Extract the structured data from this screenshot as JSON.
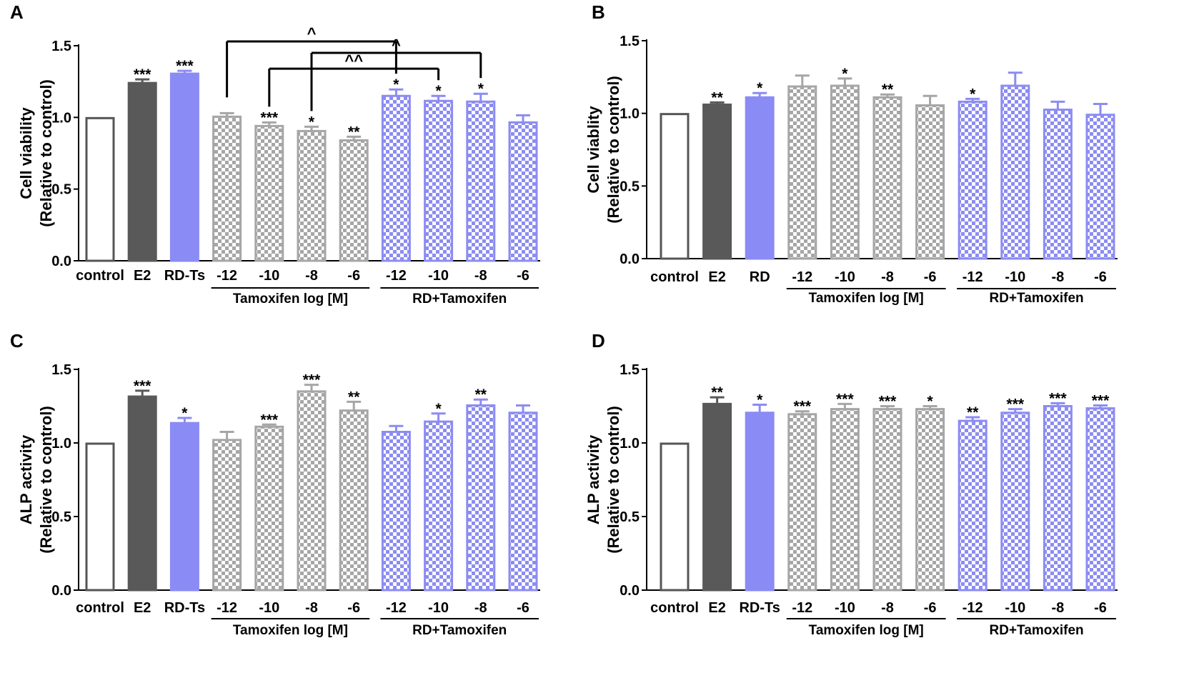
{
  "chart_data": [
    {
      "panel": "A",
      "type": "bar",
      "ylabel": [
        "Cell viability",
        "(Relative to control)"
      ],
      "ylim": [
        0,
        1.5
      ],
      "yticks": [
        "0.0",
        "0.5",
        "1.0",
        "1.5"
      ],
      "categories": [
        "control",
        "E2",
        "RD-Ts",
        "-12",
        "-10",
        "-8",
        "-6",
        "-12",
        "-10",
        "-8",
        "-6"
      ],
      "values": [
        1.0,
        1.245,
        1.31,
        1.01,
        0.945,
        0.91,
        0.845,
        1.155,
        1.12,
        1.115,
        0.97
      ],
      "errors": [
        0,
        0.02,
        0.015,
        0.02,
        0.02,
        0.025,
        0.02,
        0.04,
        0.03,
        0.05,
        0.045
      ],
      "styles": [
        "open",
        "dark",
        "blue",
        "gcheck",
        "gcheck",
        "gcheck",
        "gcheck",
        "bcheck",
        "bcheck",
        "bcheck",
        "bcheck"
      ],
      "significance": [
        "",
        "***",
        "***",
        "",
        "***",
        "*",
        "**",
        "*",
        "*",
        "*",
        ""
      ],
      "groups": [
        {
          "label": "Tamoxifen log [M]",
          "start": 3,
          "end": 6
        },
        {
          "label": "RD+Tamoxifen",
          "start": 7,
          "end": 10
        }
      ],
      "comparisons": [
        {
          "from": 3,
          "to": 7,
          "level": 1.53,
          "label": "^"
        },
        {
          "from": 5,
          "to": 9,
          "level": 1.45,
          "label": "^"
        },
        {
          "from": 4,
          "to": 8,
          "level": 1.34,
          "label": "^^"
        }
      ]
    },
    {
      "panel": "B",
      "type": "bar",
      "ylabel": [
        "Cell viablity",
        "(Relative to control)"
      ],
      "ylim": [
        0,
        1.5
      ],
      "yticks": [
        "0.0",
        "0.5",
        "1.0",
        "1.5"
      ],
      "categories": [
        "control",
        "E2",
        "RD",
        "-12",
        "-10",
        "-8",
        "-6",
        "-12",
        "-10",
        "-8",
        "-6"
      ],
      "values": [
        1.0,
        1.065,
        1.115,
        1.19,
        1.195,
        1.115,
        1.06,
        1.085,
        1.195,
        1.03,
        0.995
      ],
      "errors": [
        0,
        0.01,
        0.025,
        0.07,
        0.045,
        0.015,
        0.06,
        0.015,
        0.085,
        0.05,
        0.07
      ],
      "styles": [
        "open",
        "dark",
        "blue",
        "gcheck",
        "gcheck",
        "gcheck",
        "gcheck",
        "bcheck",
        "bcheck",
        "bcheck",
        "bcheck"
      ],
      "significance": [
        "",
        "**",
        "*",
        "",
        "*",
        "**",
        "",
        "*",
        "",
        "",
        ""
      ],
      "groups": [
        {
          "label": "Tamoxifen log [M]",
          "start": 3,
          "end": 6
        },
        {
          "label": "RD+Tamoxifen",
          "start": 7,
          "end": 10
        }
      ],
      "comparisons": []
    },
    {
      "panel": "C",
      "type": "bar",
      "ylabel": [
        "ALP activity",
        "(Relative to control)"
      ],
      "ylim": [
        0,
        1.5
      ],
      "yticks": [
        "0.0",
        "0.5",
        "1.0",
        "1.5"
      ],
      "categories": [
        "control",
        "E2",
        "RD-Ts",
        "-12",
        "-10",
        "-8",
        "-6",
        "-12",
        "-10",
        "-8",
        "-6"
      ],
      "values": [
        1.0,
        1.32,
        1.14,
        1.025,
        1.115,
        1.355,
        1.225,
        1.08,
        1.15,
        1.26,
        1.21
      ],
      "errors": [
        0,
        0.035,
        0.03,
        0.05,
        0.01,
        0.04,
        0.055,
        0.035,
        0.05,
        0.035,
        0.045
      ],
      "styles": [
        "open",
        "dark",
        "blue",
        "gcheck",
        "gcheck",
        "gcheck",
        "gcheck",
        "bcheck",
        "bcheck",
        "bcheck",
        "bcheck"
      ],
      "significance": [
        "",
        "***",
        "*",
        "",
        "***",
        "***",
        "**",
        "",
        "*",
        "**",
        ""
      ],
      "groups": [
        {
          "label": "Tamoxifen log [M]",
          "start": 3,
          "end": 6
        },
        {
          "label": "RD+Tamoxifen",
          "start": 7,
          "end": 10
        }
      ],
      "comparisons": []
    },
    {
      "panel": "D",
      "type": "bar",
      "ylabel": [
        "ALP activity",
        "(Relative to control)"
      ],
      "ylim": [
        0,
        1.5
      ],
      "yticks": [
        "0.0",
        "0.5",
        "1.0",
        "1.5"
      ],
      "categories": [
        "control",
        "E2",
        "RD-Ts",
        "-12",
        "-10",
        "-8",
        "-6",
        "-12",
        "-10",
        "-8",
        "-6"
      ],
      "values": [
        1.0,
        1.27,
        1.21,
        1.2,
        1.235,
        1.235,
        1.235,
        1.155,
        1.21,
        1.255,
        1.24
      ],
      "errors": [
        0,
        0.04,
        0.05,
        0.015,
        0.03,
        0.015,
        0.015,
        0.02,
        0.02,
        0.015,
        0.015
      ],
      "styles": [
        "open",
        "dark",
        "blue",
        "gcheck",
        "gcheck",
        "gcheck",
        "gcheck",
        "bcheck",
        "bcheck",
        "bcheck",
        "bcheck"
      ],
      "significance": [
        "",
        "**",
        "*",
        "***",
        "***",
        "***",
        "*",
        "**",
        "***",
        "***",
        "***"
      ],
      "groups": [
        {
          "label": "Tamoxifen log [M]",
          "start": 3,
          "end": 6
        },
        {
          "label": "RD+Tamoxifen",
          "start": 7,
          "end": 10
        }
      ],
      "comparisons": []
    }
  ],
  "colors": {
    "dark": "#595959",
    "blue": "#8b8bf5",
    "gray_check": "#a6a6a6",
    "blue_check": "#8c8cf2",
    "open_edge": "#555555"
  }
}
